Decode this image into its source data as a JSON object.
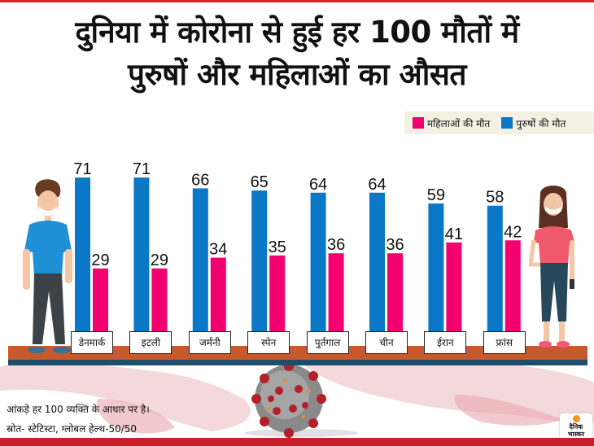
{
  "title": {
    "line1": "दुनिया में कोरोना से हुई हर 100 मौतों में",
    "line2": "पुरुषों और महिलाओं का औसत"
  },
  "legend": {
    "women_label": "महिलाओं की मौत",
    "men_label": "पुरुषों की मौत",
    "women_color": "#f2006f",
    "men_color": "#0a78c6"
  },
  "chart_data": {
    "type": "bar",
    "title": "दुनिया में कोरोना से हुई हर 100 मौतों में पुरुषों और महिलाओं का औसत",
    "xlabel": "",
    "ylabel": "",
    "ylim": [
      0,
      100
    ],
    "grid": false,
    "legend_position": "top-right",
    "categories": [
      "डेनमार्क",
      "इटली",
      "जर्मनी",
      "स्पेन",
      "पुर्तगाल",
      "चीन",
      "ईरान",
      "फ्रांस"
    ],
    "series": [
      {
        "name": "पुरुषों की मौत",
        "color": "#0a78c6",
        "values": [
          71,
          71,
          66,
          65,
          64,
          64,
          59,
          58
        ]
      },
      {
        "name": "महिलाओं की मौत",
        "color": "#f2006f",
        "values": [
          29,
          29,
          34,
          35,
          36,
          36,
          41,
          42
        ]
      }
    ]
  },
  "footer": {
    "note": "आंकड़े हर 100 व्यक्ति के आधार पर है।",
    "source": "स्रोत- स्टेटिस्टा, ग्लोबल हेल्थ-50/50"
  },
  "logo": {
    "line1": "दैनिक",
    "line2": "भास्कर"
  },
  "illustrations": {
    "man": "man-with-mask-icon",
    "woman": "woman-with-mask-icon",
    "virus": "coronavirus-icon",
    "map": "world-map-icon"
  }
}
